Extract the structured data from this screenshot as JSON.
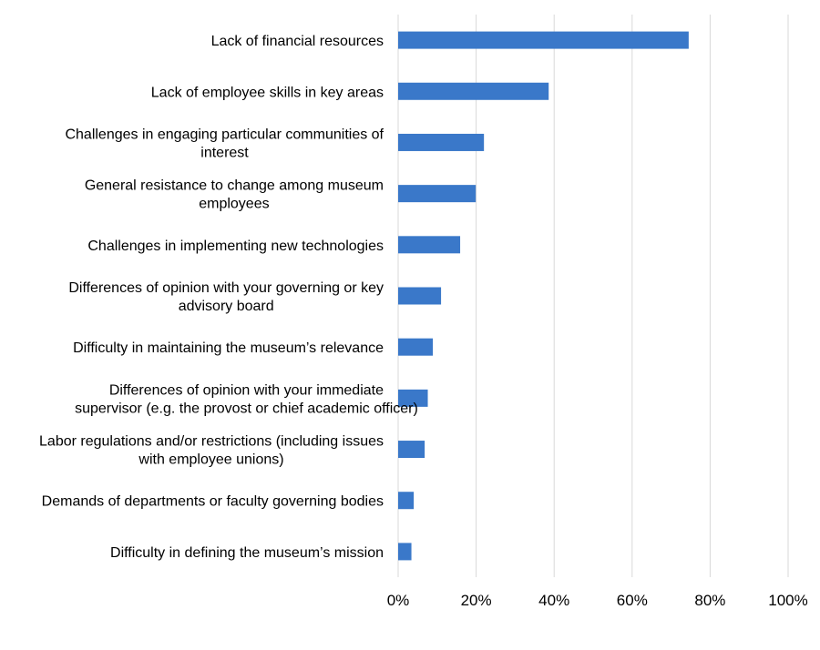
{
  "chart_data": {
    "type": "bar",
    "orientation": "horizontal",
    "categories": [
      [
        "Lack of financial resources"
      ],
      [
        "Lack of employee skills in key areas"
      ],
      [
        "Challenges in engaging particular communities of",
        "interest"
      ],
      [
        "General resistance to change among museum",
        "employees"
      ],
      [
        "Challenges in implementing new technologies"
      ],
      [
        "Differences of opinion with your governing or key",
        "advisory board"
      ],
      [
        "Difficulty in maintaining the museum’s relevance"
      ],
      [
        "Differences of opinion with your immediate",
        "supervisor (e.g. the provost or chief academic officer)"
      ],
      [
        "Labor regulations and/or restrictions (including issues",
        "with employee unions)"
      ],
      [
        "Demands of departments or faculty governing bodies"
      ],
      [
        "Difficulty in defining the museum’s mission"
      ]
    ],
    "values": [
      74.5,
      38.6,
      22.0,
      19.9,
      15.9,
      11.0,
      8.9,
      7.6,
      6.8,
      4.0,
      3.4
    ],
    "xlim": [
      0,
      100
    ],
    "xticks": [
      "0%",
      "20%",
      "40%",
      "60%",
      "80%",
      "100%"
    ],
    "grid": true,
    "colors": {
      "bar": "#3a78c9",
      "grid": "#d9d9d9"
    }
  }
}
